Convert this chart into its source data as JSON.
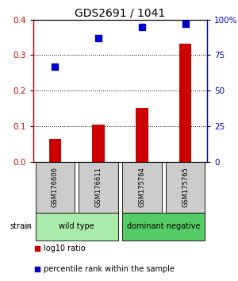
{
  "title": "GDS2691 / 1041",
  "samples": [
    "GSM176606",
    "GSM176611",
    "GSM175764",
    "GSM175765"
  ],
  "log10_ratio": [
    0.063,
    0.103,
    0.152,
    0.333
  ],
  "percentile_rank": [
    67,
    87,
    95,
    97
  ],
  "ylim_left": [
    0,
    0.4
  ],
  "ylim_right": [
    0,
    100
  ],
  "yticks_left": [
    0,
    0.1,
    0.2,
    0.3,
    0.4
  ],
  "yticks_right": [
    0,
    25,
    50,
    75,
    100
  ],
  "ytick_labels_right": [
    "0",
    "25",
    "50",
    "75",
    "100%"
  ],
  "bar_color": "#cc0000",
  "dot_color": "#0000cc",
  "groups": [
    {
      "label": "wild type",
      "samples": [
        0,
        1
      ],
      "color": "#aaeaaa"
    },
    {
      "label": "dominant negative",
      "samples": [
        2,
        3
      ],
      "color": "#55cc66"
    }
  ],
  "sample_box_color": "#cccccc",
  "legend_bar_label": "log10 ratio",
  "legend_dot_label": "percentile rank within the sample",
  "strain_label": "strain",
  "background_color": "#ffffff"
}
